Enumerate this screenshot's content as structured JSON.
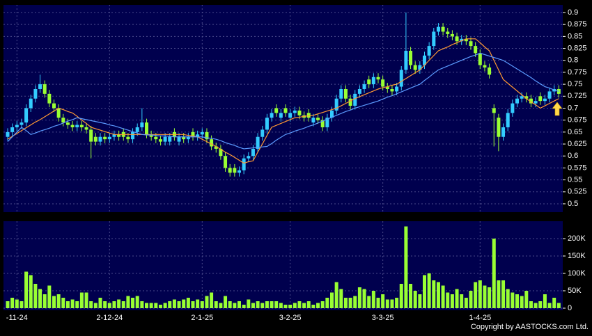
{
  "chart_data": [
    {
      "type": "candlestick",
      "up_color": "#33ccff",
      "down_color": "#99ff33",
      "open": [
        0.64,
        0.65,
        0.66,
        0.665,
        0.67,
        0.7,
        0.72,
        0.74,
        0.75,
        0.73,
        0.71,
        0.7,
        0.68,
        0.67,
        0.665,
        0.66,
        0.665,
        0.66,
        0.655,
        0.64,
        0.63,
        0.64,
        0.635,
        0.64,
        0.645,
        0.65,
        0.64,
        0.635,
        0.65,
        0.66,
        0.67,
        0.645,
        0.64,
        0.635,
        0.63,
        0.63,
        0.65,
        0.63,
        0.64,
        0.635,
        0.65,
        0.64,
        0.645,
        0.65,
        0.635,
        0.62,
        0.615,
        0.6,
        0.575,
        0.575,
        0.565,
        0.57,
        0.595,
        0.6,
        0.615,
        0.64,
        0.655,
        0.68,
        0.7,
        0.68,
        0.7,
        0.68,
        0.69,
        0.695,
        0.685,
        0.69,
        0.67,
        0.68,
        0.675,
        0.66,
        0.68,
        0.695,
        0.72,
        0.74,
        0.72,
        0.705,
        0.73,
        0.74,
        0.76,
        0.75,
        0.765,
        0.76,
        0.745,
        0.74,
        0.735,
        0.745,
        0.78,
        0.82,
        0.79,
        0.78,
        0.79,
        0.81,
        0.83,
        0.86,
        0.87,
        0.86,
        0.855,
        0.85,
        0.84,
        0.845,
        0.84,
        0.83,
        0.815,
        0.79,
        0.785,
        0.7,
        0.68,
        0.64,
        0.66,
        0.69,
        0.71,
        0.72,
        0.725,
        0.72,
        0.71,
        0.725,
        0.715,
        0.72,
        0.735,
        0.74
      ],
      "high": [
        0.658,
        0.668,
        0.673,
        0.678,
        0.708,
        0.728,
        0.748,
        0.77,
        0.758,
        0.738,
        0.718,
        0.708,
        0.688,
        0.678,
        0.673,
        0.673,
        0.673,
        0.668,
        0.663,
        0.648,
        0.648,
        0.648,
        0.648,
        0.653,
        0.653,
        0.658,
        0.648,
        0.658,
        0.668,
        0.7,
        0.678,
        0.653,
        0.648,
        0.643,
        0.648,
        0.648,
        0.658,
        0.648,
        0.648,
        0.648,
        0.658,
        0.653,
        0.658,
        0.658,
        0.643,
        0.628,
        0.623,
        0.608,
        0.583,
        0.583,
        0.578,
        0.603,
        0.608,
        0.623,
        0.648,
        0.663,
        0.688,
        0.698,
        0.708,
        0.698,
        0.708,
        0.698,
        0.703,
        0.703,
        0.693,
        0.698,
        0.688,
        0.688,
        0.683,
        0.688,
        0.703,
        0.728,
        0.748,
        0.748,
        0.728,
        0.738,
        0.748,
        0.758,
        0.768,
        0.773,
        0.773,
        0.768,
        0.753,
        0.748,
        0.753,
        0.788,
        0.9,
        0.828,
        0.798,
        0.798,
        0.818,
        0.838,
        0.868,
        0.878,
        0.878,
        0.868,
        0.863,
        0.858,
        0.853,
        0.853,
        0.848,
        0.838,
        0.823,
        0.798,
        0.793,
        0.708,
        0.688,
        0.668,
        0.698,
        0.718,
        0.728,
        0.733,
        0.733,
        0.728,
        0.723,
        0.733,
        0.728,
        0.743,
        0.748,
        0.748
      ],
      "low": [
        0.632,
        0.642,
        0.652,
        0.657,
        0.662,
        0.692,
        0.712,
        0.732,
        0.722,
        0.702,
        0.692,
        0.672,
        0.662,
        0.657,
        0.652,
        0.652,
        0.652,
        0.647,
        0.595,
        0.622,
        0.622,
        0.627,
        0.627,
        0.632,
        0.632,
        0.632,
        0.627,
        0.627,
        0.642,
        0.652,
        0.637,
        0.632,
        0.627,
        0.622,
        0.622,
        0.622,
        0.632,
        0.622,
        0.627,
        0.627,
        0.632,
        0.632,
        0.637,
        0.627,
        0.612,
        0.607,
        0.592,
        0.567,
        0.557,
        0.557,
        0.557,
        0.562,
        0.587,
        0.592,
        0.607,
        0.632,
        0.647,
        0.672,
        0.682,
        0.672,
        0.682,
        0.672,
        0.682,
        0.677,
        0.672,
        0.672,
        0.662,
        0.667,
        0.652,
        0.652,
        0.672,
        0.687,
        0.712,
        0.712,
        0.697,
        0.697,
        0.722,
        0.732,
        0.742,
        0.742,
        0.752,
        0.737,
        0.732,
        0.727,
        0.727,
        0.737,
        0.772,
        0.782,
        0.772,
        0.772,
        0.782,
        0.802,
        0.822,
        0.852,
        0.852,
        0.847,
        0.842,
        0.832,
        0.832,
        0.832,
        0.822,
        0.807,
        0.782,
        0.777,
        0.762,
        0.62,
        0.61,
        0.632,
        0.652,
        0.682,
        0.702,
        0.712,
        0.712,
        0.702,
        0.702,
        0.707,
        0.707,
        0.712,
        0.727,
        0.722
      ],
      "close": [
        0.65,
        0.66,
        0.665,
        0.67,
        0.7,
        0.72,
        0.74,
        0.75,
        0.73,
        0.71,
        0.7,
        0.68,
        0.67,
        0.665,
        0.66,
        0.665,
        0.66,
        0.655,
        0.63,
        0.63,
        0.64,
        0.635,
        0.64,
        0.645,
        0.64,
        0.64,
        0.635,
        0.65,
        0.66,
        0.67,
        0.645,
        0.64,
        0.635,
        0.63,
        0.64,
        0.64,
        0.64,
        0.64,
        0.635,
        0.64,
        0.64,
        0.645,
        0.65,
        0.635,
        0.62,
        0.615,
        0.6,
        0.575,
        0.565,
        0.565,
        0.57,
        0.595,
        0.6,
        0.615,
        0.64,
        0.655,
        0.68,
        0.69,
        0.69,
        0.69,
        0.69,
        0.69,
        0.695,
        0.685,
        0.68,
        0.68,
        0.68,
        0.675,
        0.66,
        0.68,
        0.695,
        0.72,
        0.74,
        0.72,
        0.705,
        0.73,
        0.74,
        0.75,
        0.75,
        0.765,
        0.76,
        0.745,
        0.74,
        0.735,
        0.745,
        0.78,
        0.82,
        0.79,
        0.78,
        0.79,
        0.81,
        0.83,
        0.86,
        0.87,
        0.86,
        0.855,
        0.85,
        0.84,
        0.845,
        0.84,
        0.83,
        0.815,
        0.79,
        0.785,
        0.77,
        0.69,
        0.64,
        0.66,
        0.69,
        0.71,
        0.72,
        0.725,
        0.72,
        0.71,
        0.715,
        0.715,
        0.72,
        0.735,
        0.74,
        0.73
      ],
      "series": [
        {
          "color": "#ff9933",
          "values": [
            0.635,
            0.641,
            0.647,
            0.653,
            0.659,
            0.665,
            0.671,
            0.676,
            0.682,
            0.688,
            0.694,
            0.7,
            0.697,
            0.693,
            0.69,
            0.683,
            0.675,
            0.668,
            0.66,
            0.657,
            0.654,
            0.651,
            0.648,
            0.645,
            0.645,
            0.645,
            0.645,
            0.645,
            0.645,
            0.645,
            0.645,
            0.645,
            0.645,
            0.645,
            0.645,
            0.645,
            0.645,
            0.645,
            0.645,
            0.643,
            0.642,
            0.64,
            0.635,
            0.63,
            0.625,
            0.62,
            0.614,
            0.608,
            0.603,
            0.597,
            0.591,
            0.585,
            0.588,
            0.59,
            0.608,
            0.625,
            0.643,
            0.66,
            0.664,
            0.668,
            0.672,
            0.676,
            0.68,
            0.681,
            0.683,
            0.684,
            0.685,
            0.688,
            0.691,
            0.694,
            0.697,
            0.7,
            0.705,
            0.71,
            0.715,
            0.72,
            0.724,
            0.728,
            0.732,
            0.736,
            0.74,
            0.743,
            0.745,
            0.748,
            0.75,
            0.756,
            0.762,
            0.768,
            0.774,
            0.78,
            0.79,
            0.8,
            0.81,
            0.82,
            0.824,
            0.828,
            0.833,
            0.837,
            0.841,
            0.845,
            0.845,
            0.845,
            0.837,
            0.828,
            0.82,
            0.8,
            0.78,
            0.76,
            0.752,
            0.744,
            0.736,
            0.728,
            0.72,
            0.713,
            0.707,
            0.7,
            0.705,
            0.71,
            0.715,
            0.72
          ]
        },
        {
          "color": "#5b9bff",
          "values": [
            0.63,
            0.64,
            0.65,
            0.66,
            0.653,
            0.645,
            0.648,
            0.652,
            0.655,
            0.658,
            0.662,
            0.665,
            0.669,
            0.673,
            0.676,
            0.68,
            0.678,
            0.676,
            0.674,
            0.672,
            0.67,
            0.668,
            0.665,
            0.663,
            0.66,
            0.657,
            0.654,
            0.651,
            0.648,
            0.645,
            0.644,
            0.644,
            0.643,
            0.642,
            0.642,
            0.641,
            0.64,
            0.64,
            0.64,
            0.64,
            0.64,
            0.64,
            0.64,
            0.638,
            0.637,
            0.635,
            0.632,
            0.628,
            0.625,
            0.622,
            0.618,
            0.615,
            0.616,
            0.617,
            0.618,
            0.619,
            0.62,
            0.626,
            0.633,
            0.639,
            0.645,
            0.648,
            0.652,
            0.655,
            0.658,
            0.662,
            0.665,
            0.669,
            0.673,
            0.677,
            0.681,
            0.685,
            0.689,
            0.693,
            0.696,
            0.7,
            0.703,
            0.706,
            0.709,
            0.712,
            0.715,
            0.719,
            0.723,
            0.726,
            0.73,
            0.734,
            0.738,
            0.742,
            0.746,
            0.75,
            0.758,
            0.765,
            0.773,
            0.78,
            0.784,
            0.788,
            0.792,
            0.796,
            0.8,
            0.804,
            0.808,
            0.811,
            0.815,
            0.812,
            0.809,
            0.806,
            0.803,
            0.8,
            0.794,
            0.788,
            0.782,
            0.776,
            0.77,
            0.764,
            0.757,
            0.751,
            0.745,
            0.742,
            0.738,
            0.735
          ]
        }
      ],
      "ylim": [
        0.4825,
        0.916
      ],
      "yticks": [
        0.5,
        0.525,
        0.55,
        0.575,
        0.6,
        0.625,
        0.65,
        0.675,
        0.7,
        0.725,
        0.75,
        0.775,
        0.8,
        0.825,
        0.85,
        0.875,
        0.9
      ],
      "grid": true
    },
    {
      "type": "bar",
      "color": "#99ff33",
      "categories": [
        null,
        null,
        "-11-24",
        null,
        null,
        null,
        null,
        null,
        null,
        null,
        null,
        null,
        null,
        null,
        null,
        null,
        null,
        null,
        null,
        null,
        null,
        null,
        "2-12-24",
        null,
        null,
        null,
        null,
        null,
        null,
        null,
        null,
        null,
        null,
        null,
        null,
        null,
        null,
        null,
        null,
        null,
        null,
        null,
        "2-1-25",
        null,
        null,
        null,
        null,
        null,
        null,
        null,
        null,
        null,
        null,
        null,
        null,
        null,
        null,
        null,
        null,
        null,
        null,
        "3-2-25",
        null,
        null,
        null,
        null,
        null,
        null,
        null,
        null,
        null,
        null,
        null,
        null,
        null,
        null,
        null,
        null,
        null,
        null,
        null,
        "3-3-25",
        null,
        null,
        null,
        null,
        null,
        null,
        null,
        null,
        null,
        null,
        null,
        null,
        null,
        null,
        null,
        null,
        null,
        null,
        null,
        null,
        "1-4-25",
        null,
        null,
        null,
        null,
        null,
        null,
        null,
        null,
        null,
        null,
        null,
        null,
        null,
        null,
        null,
        null,
        null
      ],
      "values": [
        20000,
        30000,
        25000,
        20000,
        105000,
        95000,
        70000,
        55000,
        40000,
        65000,
        35000,
        40000,
        30000,
        20000,
        25000,
        20000,
        45000,
        45000,
        20000,
        15000,
        30000,
        20000,
        15000,
        20000,
        25000,
        20000,
        35000,
        30000,
        35000,
        20000,
        15000,
        15000,
        15000,
        10000,
        15000,
        20000,
        25000,
        20000,
        25000,
        30000,
        20000,
        25000,
        20000,
        35000,
        45000,
        20000,
        15000,
        35000,
        20000,
        15000,
        20000,
        10000,
        25000,
        15000,
        20000,
        15000,
        20000,
        20000,
        20000,
        15000,
        10000,
        10000,
        15000,
        20000,
        15000,
        20000,
        10000,
        15000,
        20000,
        30000,
        45000,
        75000,
        55000,
        30000,
        30000,
        35000,
        60000,
        55000,
        35000,
        50000,
        30000,
        40000,
        25000,
        25000,
        30000,
        70000,
        235000,
        70000,
        50000,
        40000,
        95000,
        100000,
        80000,
        75000,
        65000,
        45000,
        40000,
        55000,
        40000,
        30000,
        50000,
        75000,
        80000,
        65000,
        60000,
        200000,
        80000,
        80000,
        55000,
        45000,
        40000,
        35000,
        50000,
        20000,
        15000,
        20000,
        40000,
        15000,
        30000,
        15000
      ],
      "ylim": [
        -6000,
        250000
      ],
      "yticks": [
        0,
        {
          "value": 50000,
          "label": "50K"
        },
        {
          "value": 100000,
          "label": "100K"
        },
        {
          "value": 150000,
          "label": "150K"
        },
        {
          "value": 200000,
          "label": "200K"
        }
      ],
      "grid": true,
      "source": "Copyright by AASTOCKS.com Ltd."
    }
  ]
}
